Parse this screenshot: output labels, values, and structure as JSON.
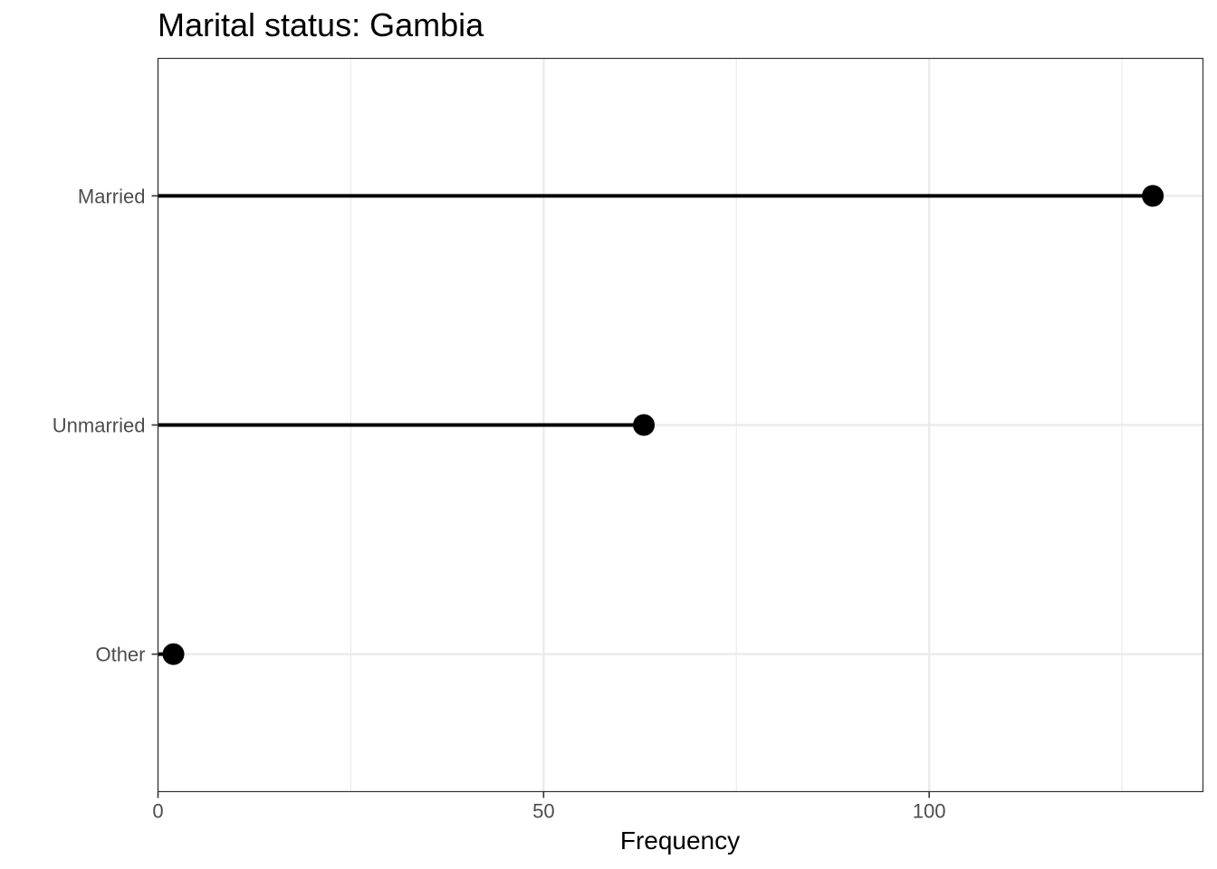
{
  "chart_data": {
    "type": "lollipop",
    "title": "Marital status: Gambia",
    "xlabel": "Frequency",
    "ylabel": "",
    "categories": [
      "Married",
      "Unmarried",
      "Other"
    ],
    "values": [
      129,
      63,
      2
    ],
    "xlim": [
      0,
      135.5
    ],
    "x_ticks": [
      0,
      50,
      100
    ],
    "x_minor_ticks": [
      25,
      75,
      125
    ],
    "grid": true,
    "legend": "none",
    "colors": {
      "mark": "#000000",
      "grid": "#ebebeb",
      "panel_border": "#333333",
      "tick_text": "#4d4d4d",
      "background": "#ffffff"
    }
  }
}
